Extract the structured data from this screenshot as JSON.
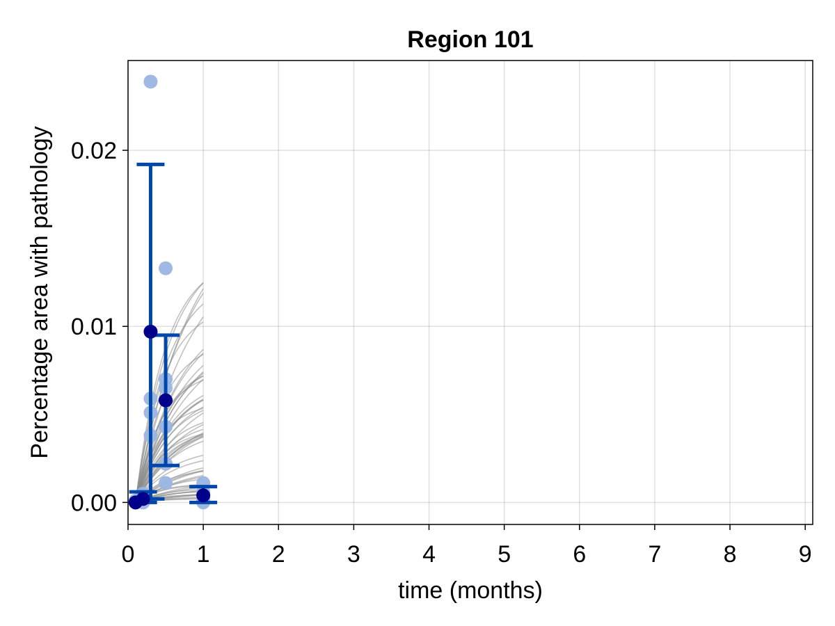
{
  "chart_data": {
    "type": "scatter",
    "title": "Region 101",
    "xlabel": "time (months)",
    "ylabel": "Percentage area with pathology",
    "xlim": [
      0,
      9.1
    ],
    "ylim": [
      -0.00125,
      0.0251
    ],
    "x_ticks": [
      0,
      1,
      2,
      3,
      4,
      5,
      6,
      7,
      8,
      9
    ],
    "x_tick_labels": [
      "0",
      "1",
      "2",
      "3",
      "4",
      "5",
      "6",
      "7",
      "8",
      "9"
    ],
    "y_ticks": [
      0,
      0.01,
      0.02
    ],
    "y_tick_labels": [
      "0.00",
      "0.01",
      "0.02"
    ],
    "grid": true,
    "colors": {
      "observations": "#9ab5e0",
      "means": "#00008b",
      "error_bars": "#0047ab",
      "posterior_curves": "#8c8c8c"
    },
    "observations": [
      {
        "x": 0.1,
        "y": 0.0
      },
      {
        "x": 0.1,
        "y": 0.0001
      },
      {
        "x": 0.2,
        "y": 0.0
      },
      {
        "x": 0.2,
        "y": 0.0003
      },
      {
        "x": 0.2,
        "y": 0.0005
      },
      {
        "x": 0.3,
        "y": 0.0239
      },
      {
        "x": 0.3,
        "y": 0.0059
      },
      {
        "x": 0.3,
        "y": 0.0051
      },
      {
        "x": 0.3,
        "y": 0.0038
      },
      {
        "x": 0.5,
        "y": 0.0133
      },
      {
        "x": 0.5,
        "y": 0.007
      },
      {
        "x": 0.5,
        "y": 0.0065
      },
      {
        "x": 0.5,
        "y": 0.0043
      },
      {
        "x": 0.5,
        "y": 0.0022
      },
      {
        "x": 0.5,
        "y": 0.0011
      },
      {
        "x": 1.0,
        "y": 0.0011
      },
      {
        "x": 1.0,
        "y": 0.0006
      },
      {
        "x": 1.0,
        "y": 0.0003
      },
      {
        "x": 1.0,
        "y": 0.0001
      },
      {
        "x": 1.0,
        "y": 0.0
      }
    ],
    "means": [
      {
        "x": 0.1,
        "y": 0.0
      },
      {
        "x": 0.2,
        "y": 0.0002
      },
      {
        "x": 0.3,
        "y": 0.0097
      },
      {
        "x": 0.5,
        "y": 0.0058
      },
      {
        "x": 1.0,
        "y": 0.0004
      }
    ],
    "error_bars": [
      {
        "x": 0.2,
        "low": 0.0,
        "high": 0.0006
      },
      {
        "x": 0.3,
        "low": 0.0002,
        "high": 0.0192
      },
      {
        "x": 0.5,
        "low": 0.0021,
        "high": 0.0095
      },
      {
        "x": 1.0,
        "low": 0.0,
        "high": 0.0009
      }
    ],
    "posterior_curves": {
      "count": 60,
      "x_range": [
        0.1,
        1.0
      ],
      "start_y": 0.0,
      "end_y_range": [
        0.0002,
        0.0134
      ]
    }
  }
}
